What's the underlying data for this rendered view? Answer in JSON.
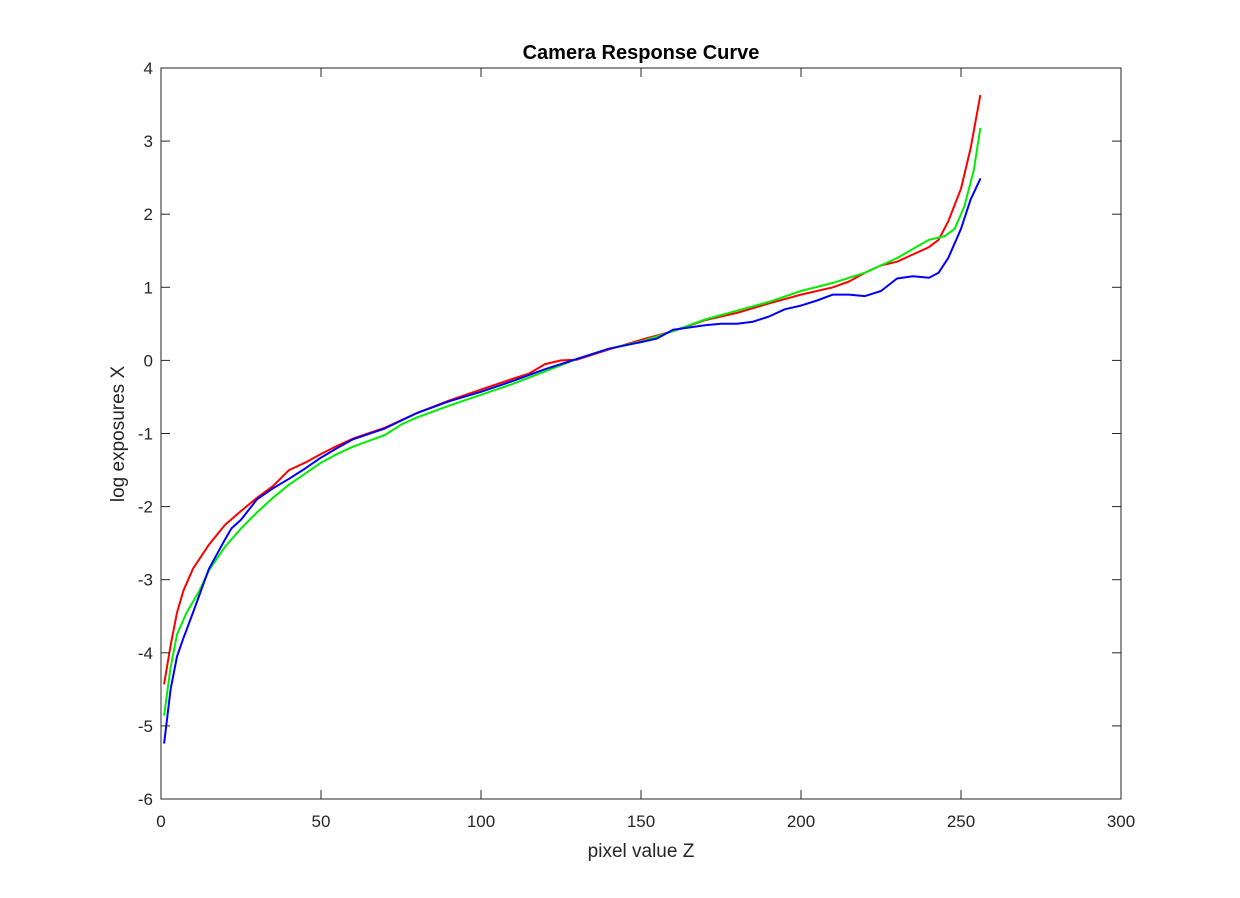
{
  "chart_data": {
    "type": "line",
    "title": "Camera Response Curve",
    "xlabel": "pixel value Z",
    "ylabel": "log exposures X",
    "xlim": [
      0,
      300
    ],
    "ylim": [
      -6,
      4
    ],
    "xticks": [
      0,
      50,
      100,
      150,
      200,
      250,
      300
    ],
    "yticks": [
      -6,
      -5,
      -4,
      -3,
      -2,
      -1,
      0,
      1,
      2,
      3,
      4
    ],
    "grid": false,
    "series": [
      {
        "color": "#ff0000",
        "points": [
          [
            1,
            -4.42
          ],
          [
            3,
            -3.9
          ],
          [
            5,
            -3.45
          ],
          [
            7,
            -3.15
          ],
          [
            10,
            -2.85
          ],
          [
            15,
            -2.52
          ],
          [
            20,
            -2.25
          ],
          [
            25,
            -2.06
          ],
          [
            30,
            -1.88
          ],
          [
            35,
            -1.72
          ],
          [
            40,
            -1.5
          ],
          [
            45,
            -1.4
          ],
          [
            50,
            -1.28
          ],
          [
            55,
            -1.17
          ],
          [
            60,
            -1.07
          ],
          [
            70,
            -0.92
          ],
          [
            80,
            -0.72
          ],
          [
            90,
            -0.55
          ],
          [
            100,
            -0.4
          ],
          [
            110,
            -0.25
          ],
          [
            115,
            -0.18
          ],
          [
            120,
            -0.05
          ],
          [
            125,
            0.0
          ],
          [
            130,
            0.01
          ],
          [
            140,
            0.15
          ],
          [
            150,
            0.28
          ],
          [
            160,
            0.4
          ],
          [
            170,
            0.55
          ],
          [
            175,
            0.6
          ],
          [
            180,
            0.65
          ],
          [
            190,
            0.78
          ],
          [
            200,
            0.9
          ],
          [
            210,
            1.0
          ],
          [
            215,
            1.08
          ],
          [
            220,
            1.2
          ],
          [
            225,
            1.3
          ],
          [
            230,
            1.35
          ],
          [
            235,
            1.45
          ],
          [
            240,
            1.55
          ],
          [
            243,
            1.65
          ],
          [
            246,
            1.9
          ],
          [
            250,
            2.35
          ],
          [
            253,
            2.9
          ],
          [
            256,
            3.62
          ]
        ]
      },
      {
        "color": "#00ee00",
        "points": [
          [
            1,
            -4.85
          ],
          [
            3,
            -4.2
          ],
          [
            5,
            -3.75
          ],
          [
            8,
            -3.45
          ],
          [
            12,
            -3.15
          ],
          [
            15,
            -2.87
          ],
          [
            20,
            -2.55
          ],
          [
            25,
            -2.3
          ],
          [
            30,
            -2.08
          ],
          [
            35,
            -1.88
          ],
          [
            40,
            -1.7
          ],
          [
            45,
            -1.55
          ],
          [
            50,
            -1.4
          ],
          [
            55,
            -1.28
          ],
          [
            60,
            -1.18
          ],
          [
            70,
            -1.02
          ],
          [
            75,
            -0.88
          ],
          [
            80,
            -0.78
          ],
          [
            90,
            -0.62
          ],
          [
            100,
            -0.47
          ],
          [
            110,
            -0.32
          ],
          [
            120,
            -0.15
          ],
          [
            130,
            0.02
          ],
          [
            140,
            0.16
          ],
          [
            150,
            0.26
          ],
          [
            160,
            0.4
          ],
          [
            170,
            0.56
          ],
          [
            180,
            0.68
          ],
          [
            190,
            0.8
          ],
          [
            200,
            0.95
          ],
          [
            210,
            1.06
          ],
          [
            220,
            1.2
          ],
          [
            230,
            1.4
          ],
          [
            240,
            1.65
          ],
          [
            245,
            1.7
          ],
          [
            248,
            1.8
          ],
          [
            251,
            2.1
          ],
          [
            254,
            2.6
          ],
          [
            256,
            3.17
          ]
        ]
      },
      {
        "color": "#0000ff",
        "points": [
          [
            1,
            -5.23
          ],
          [
            3,
            -4.5
          ],
          [
            5,
            -4.05
          ],
          [
            7,
            -3.8
          ],
          [
            10,
            -3.45
          ],
          [
            15,
            -2.85
          ],
          [
            20,
            -2.45
          ],
          [
            22,
            -2.3
          ],
          [
            25,
            -2.18
          ],
          [
            30,
            -1.9
          ],
          [
            35,
            -1.75
          ],
          [
            40,
            -1.62
          ],
          [
            45,
            -1.48
          ],
          [
            50,
            -1.33
          ],
          [
            55,
            -1.2
          ],
          [
            60,
            -1.08
          ],
          [
            70,
            -0.93
          ],
          [
            80,
            -0.72
          ],
          [
            90,
            -0.56
          ],
          [
            100,
            -0.43
          ],
          [
            110,
            -0.28
          ],
          [
            120,
            -0.12
          ],
          [
            130,
            0.02
          ],
          [
            140,
            0.16
          ],
          [
            150,
            0.25
          ],
          [
            155,
            0.3
          ],
          [
            160,
            0.42
          ],
          [
            170,
            0.48
          ],
          [
            175,
            0.5
          ],
          [
            180,
            0.5
          ],
          [
            185,
            0.53
          ],
          [
            190,
            0.6
          ],
          [
            195,
            0.7
          ],
          [
            200,
            0.75
          ],
          [
            205,
            0.82
          ],
          [
            210,
            0.9
          ],
          [
            215,
            0.9
          ],
          [
            220,
            0.88
          ],
          [
            225,
            0.95
          ],
          [
            230,
            1.12
          ],
          [
            235,
            1.15
          ],
          [
            240,
            1.13
          ],
          [
            243,
            1.2
          ],
          [
            246,
            1.4
          ],
          [
            250,
            1.8
          ],
          [
            253,
            2.2
          ],
          [
            256,
            2.48
          ]
        ]
      }
    ]
  }
}
